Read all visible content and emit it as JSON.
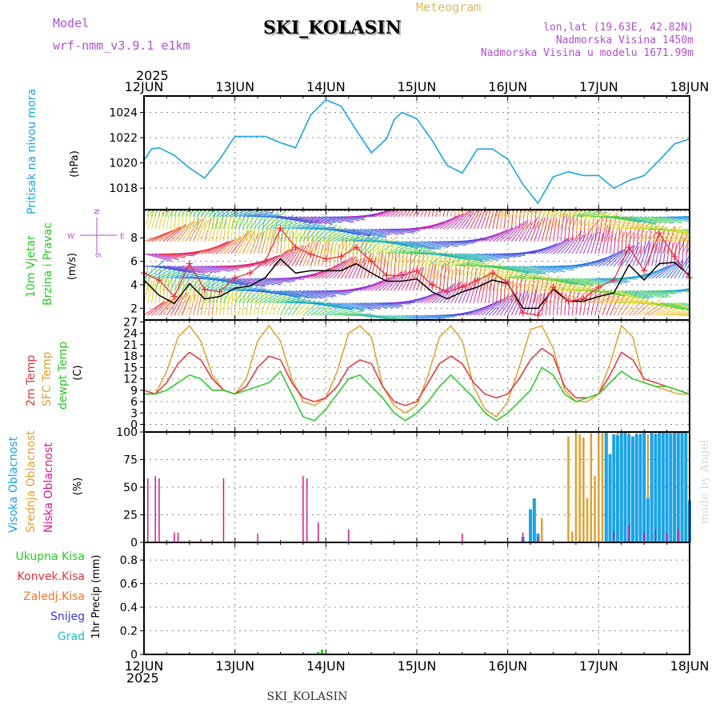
{
  "header": {
    "model_label": "Model",
    "model_name": "wrf-nmm_v3.9.1 e1km",
    "meteogram": "Meteogram",
    "station": "SKI_KOLASIN",
    "coords": "lon,lat (19.63E, 42.82N)",
    "elevation": "Nadmorska Visina 1450m",
    "model_elevation": "Nadmorska Visina u modelu 1671.99m",
    "year_top": "2025",
    "year_bottom": "2025",
    "footer_station": "SKI_KOLASIN",
    "watermark": "made by Angel"
  },
  "colors": {
    "pressure": "#1aa3e8",
    "wind_speed": "#000000",
    "wind_gust": "#e8323c",
    "temp2m": "#e8323c",
    "sfc_temp": "#e0a030",
    "dewpoint": "#28c828",
    "cloud_high": "#1aa3e8",
    "cloud_mid": "#e0a030",
    "cloud_low": "#d81890",
    "precip_total": "#28c828",
    "legend_green": "#28c828",
    "legend_red": "#e8323c",
    "legend_orange": "#f07830",
    "legend_blue": "#3838d8",
    "legend_cyan": "#20c0c0",
    "legend_purple": "#b050d0"
  },
  "chart_data": [
    {
      "type": "line",
      "ylabel_left": "Pritisak na nivou mora",
      "ylabel_unit": "(hPa)",
      "x_ticks": [
        "12JUN",
        "13JUN",
        "14JUN",
        "15JUN",
        "16JUN",
        "17JUN",
        "18JUN"
      ],
      "yticks": [
        1018,
        1020,
        1022,
        1024
      ],
      "ylim": [
        1016.3,
        1025.3
      ],
      "x_hours": [
        0,
        2,
        4,
        6,
        8,
        12,
        16,
        20,
        24,
        28,
        32,
        36,
        40,
        44,
        48,
        52,
        56,
        60,
        64,
        66,
        68,
        72,
        76,
        80,
        84,
        88,
        92,
        96,
        100,
        104,
        108,
        112,
        116,
        120,
        124,
        128,
        132,
        136,
        140,
        144
      ],
      "series": [
        {
          "values": [
            1020.2,
            1021.1,
            1021.2,
            1020.9,
            1020.6,
            1019.6,
            1018.8,
            1020.3,
            1022.1,
            1022.1,
            1022.1,
            1021.6,
            1021.2,
            1023.8,
            1025.0,
            1024.5,
            1022.6,
            1020.8,
            1021.9,
            1023.4,
            1024.0,
            1023.5,
            1021.8,
            1019.8,
            1019.2,
            1021.1,
            1021.1,
            1020.3,
            1018.3,
            1016.8,
            1018.9,
            1019.3,
            1019.0,
            1019.0,
            1018.0,
            1018.6,
            1019.0,
            1020.2,
            1021.5,
            1021.9
          ]
        }
      ]
    },
    {
      "type": "line",
      "ylabel_left": [
        "10m Vjetar",
        "Brzina i Pravac"
      ],
      "ylabel_unit": "(m/s)",
      "compass": [
        "N",
        "W",
        "E",
        "S"
      ],
      "yticks": [
        2,
        4,
        6,
        8
      ],
      "ylim": [
        1,
        10.4
      ],
      "x_hours": [
        0,
        4,
        8,
        12,
        16,
        20,
        24,
        28,
        32,
        36,
        40,
        44,
        48,
        52,
        56,
        60,
        64,
        68,
        72,
        76,
        80,
        84,
        88,
        92,
        96,
        100,
        104,
        108,
        112,
        116,
        120,
        124,
        128,
        132,
        136,
        140,
        144
      ],
      "series": [
        {
          "name": "speed",
          "values": [
            4.4,
            3.1,
            2.4,
            4.1,
            2.8,
            3.0,
            3.7,
            3.9,
            4.6,
            6.2,
            5.0,
            5.2,
            5.2,
            5.2,
            5.8,
            5.0,
            4.3,
            4.3,
            4.5,
            3.4,
            2.8,
            3.4,
            3.8,
            4.4,
            4.1,
            2.0,
            2.0,
            3.6,
            2.6,
            2.6,
            3.0,
            3.3,
            5.7,
            4.4,
            5.8,
            5.9,
            4.8
          ]
        },
        {
          "name": "gust",
          "values": [
            5.0,
            4.4,
            3.0,
            5.8,
            3.6,
            3.4,
            4.6,
            5.0,
            6.0,
            8.8,
            7.2,
            6.6,
            6.2,
            6.4,
            7.2,
            6.0,
            4.8,
            4.8,
            5.2,
            4.0,
            3.4,
            3.8,
            4.4,
            5.0,
            4.2,
            1.6,
            1.4,
            3.8,
            2.6,
            2.8,
            3.8,
            4.4,
            7.2,
            5.2,
            8.4,
            6.4,
            4.6
          ]
        }
      ]
    },
    {
      "type": "line",
      "ylabel_left": [
        "2m Temp",
        "SFC Temp",
        "dewpt Temp"
      ],
      "ylabel_unit": "(C)",
      "yticks": [
        0,
        3,
        6,
        9,
        12,
        15,
        18,
        21,
        24,
        27
      ],
      "ylim": [
        -2,
        27.5
      ],
      "x_hours": [
        0,
        3,
        6,
        9,
        12,
        15,
        18,
        21,
        24,
        27,
        30,
        33,
        36,
        39,
        42,
        45,
        48,
        51,
        54,
        57,
        60,
        63,
        66,
        69,
        72,
        75,
        78,
        81,
        84,
        87,
        90,
        93,
        96,
        99,
        102,
        105,
        108,
        111,
        114,
        117,
        120,
        123,
        126,
        129,
        132,
        135,
        138,
        141,
        144
      ],
      "series": [
        {
          "name": "2m Temp",
          "values": [
            9,
            8,
            11,
            16,
            19,
            17,
            12,
            9,
            8,
            10,
            15,
            18,
            17,
            11,
            7,
            6,
            7,
            10,
            15,
            17,
            16,
            10,
            6,
            5,
            6,
            11,
            16,
            18,
            16,
            11,
            8,
            7,
            8,
            12,
            17,
            20,
            18,
            10,
            7,
            7,
            8,
            13,
            19,
            17,
            12,
            11,
            10,
            9,
            8
          ]
        },
        {
          "name": "SFC Temp",
          "values": [
            8,
            8,
            14,
            23,
            26,
            22,
            13,
            9,
            8,
            12,
            22,
            26,
            22,
            12,
            6,
            5,
            7,
            14,
            24,
            26,
            23,
            10,
            5,
            3,
            5,
            13,
            23,
            26,
            22,
            10,
            4,
            2,
            6,
            15,
            25,
            26,
            20,
            9,
            6,
            6,
            8,
            16,
            26,
            23,
            11,
            10,
            9,
            8,
            8
          ]
        },
        {
          "name": "dewpt Temp",
          "values": [
            8,
            8,
            9,
            11,
            13,
            12,
            9,
            9,
            8,
            9,
            10,
            11,
            14,
            8,
            2,
            1,
            4,
            8,
            12,
            13,
            10,
            7,
            3,
            1,
            3,
            6,
            10,
            13,
            10,
            7,
            3,
            1,
            3,
            6,
            9,
            15,
            13,
            8,
            6,
            7,
            8,
            11,
            14,
            12,
            11,
            10,
            10,
            9,
            8
          ]
        }
      ]
    },
    {
      "type": "bar",
      "ylabel_left": [
        "Visoka Oblacnost",
        "Srednja Oblacnost",
        "Niska Oblacnost"
      ],
      "ylabel_unit": "(%)",
      "yticks": [
        0,
        25,
        50,
        75,
        100
      ],
      "ylim": [
        0,
        100
      ],
      "series": [
        {
          "name": "low",
          "x_hours": [
            1,
            3,
            4,
            8,
            9,
            15,
            18,
            21,
            24,
            30,
            33,
            36,
            40,
            42,
            43,
            46,
            50,
            54,
            56,
            60,
            66,
            72,
            78,
            84,
            92,
            96,
            100,
            104,
            108,
            115,
            120,
            124,
            128,
            132,
            135,
            138,
            141,
            144
          ],
          "values": [
            58,
            60,
            58,
            9,
            9,
            3,
            1,
            58,
            1,
            8,
            1,
            1,
            1,
            60,
            58,
            18,
            1,
            12,
            1,
            1,
            2,
            1,
            1,
            8,
            1,
            1,
            9,
            5,
            1,
            1,
            1,
            10,
            15,
            9,
            12,
            8,
            12,
            10
          ]
        },
        {
          "name": "mid",
          "x_hours": [
            105,
            112,
            113,
            114,
            115,
            116,
            117,
            118,
            119,
            120,
            121,
            122,
            123,
            124,
            125,
            126,
            127,
            128,
            129,
            130,
            131,
            132,
            133,
            134,
            135,
            136,
            137,
            138,
            139,
            140,
            141,
            142,
            143
          ],
          "values": [
            22,
            96,
            10,
            98,
            98,
            95,
            40,
            99,
            60,
            98,
            99,
            90,
            50,
            30,
            100,
            99,
            98,
            100,
            40,
            99,
            99,
            99,
            98,
            60,
            100,
            100,
            98,
            100,
            98,
            100,
            100,
            99,
            100
          ]
        },
        {
          "name": "high",
          "x_hours": [
            100,
            102,
            103,
            104,
            122,
            123,
            124,
            125,
            126,
            127,
            128,
            129,
            130,
            131,
            132,
            133,
            134,
            135,
            136,
            137,
            138,
            139,
            140,
            141,
            142,
            143,
            144
          ],
          "values": [
            5,
            30,
            40,
            8,
            100,
            80,
            98,
            97,
            100,
            100,
            98,
            96,
            98,
            98,
            100,
            40,
            100,
            98,
            100,
            100,
            100,
            99,
            100,
            100,
            100,
            100,
            38
          ]
        }
      ]
    },
    {
      "type": "bar",
      "ylabel_left": [
        "Ukupna Kisa",
        "Konvek.Kisa",
        "Zaledj.Kisa",
        "Snijeg",
        "Grad"
      ],
      "ylabel_unit": "1hr Precip (mm)",
      "yticks": [
        0,
        0.2,
        0.4,
        0.6,
        0.8
      ],
      "ylim": [
        0,
        0.95
      ],
      "series": [
        {
          "name": "Ukupna Kisa",
          "x_hours": [
            22,
            23,
            46,
            47,
            48
          ],
          "values": [
            0.005,
            0.004,
            0.02,
            0.04,
            0.01
          ]
        }
      ]
    }
  ]
}
